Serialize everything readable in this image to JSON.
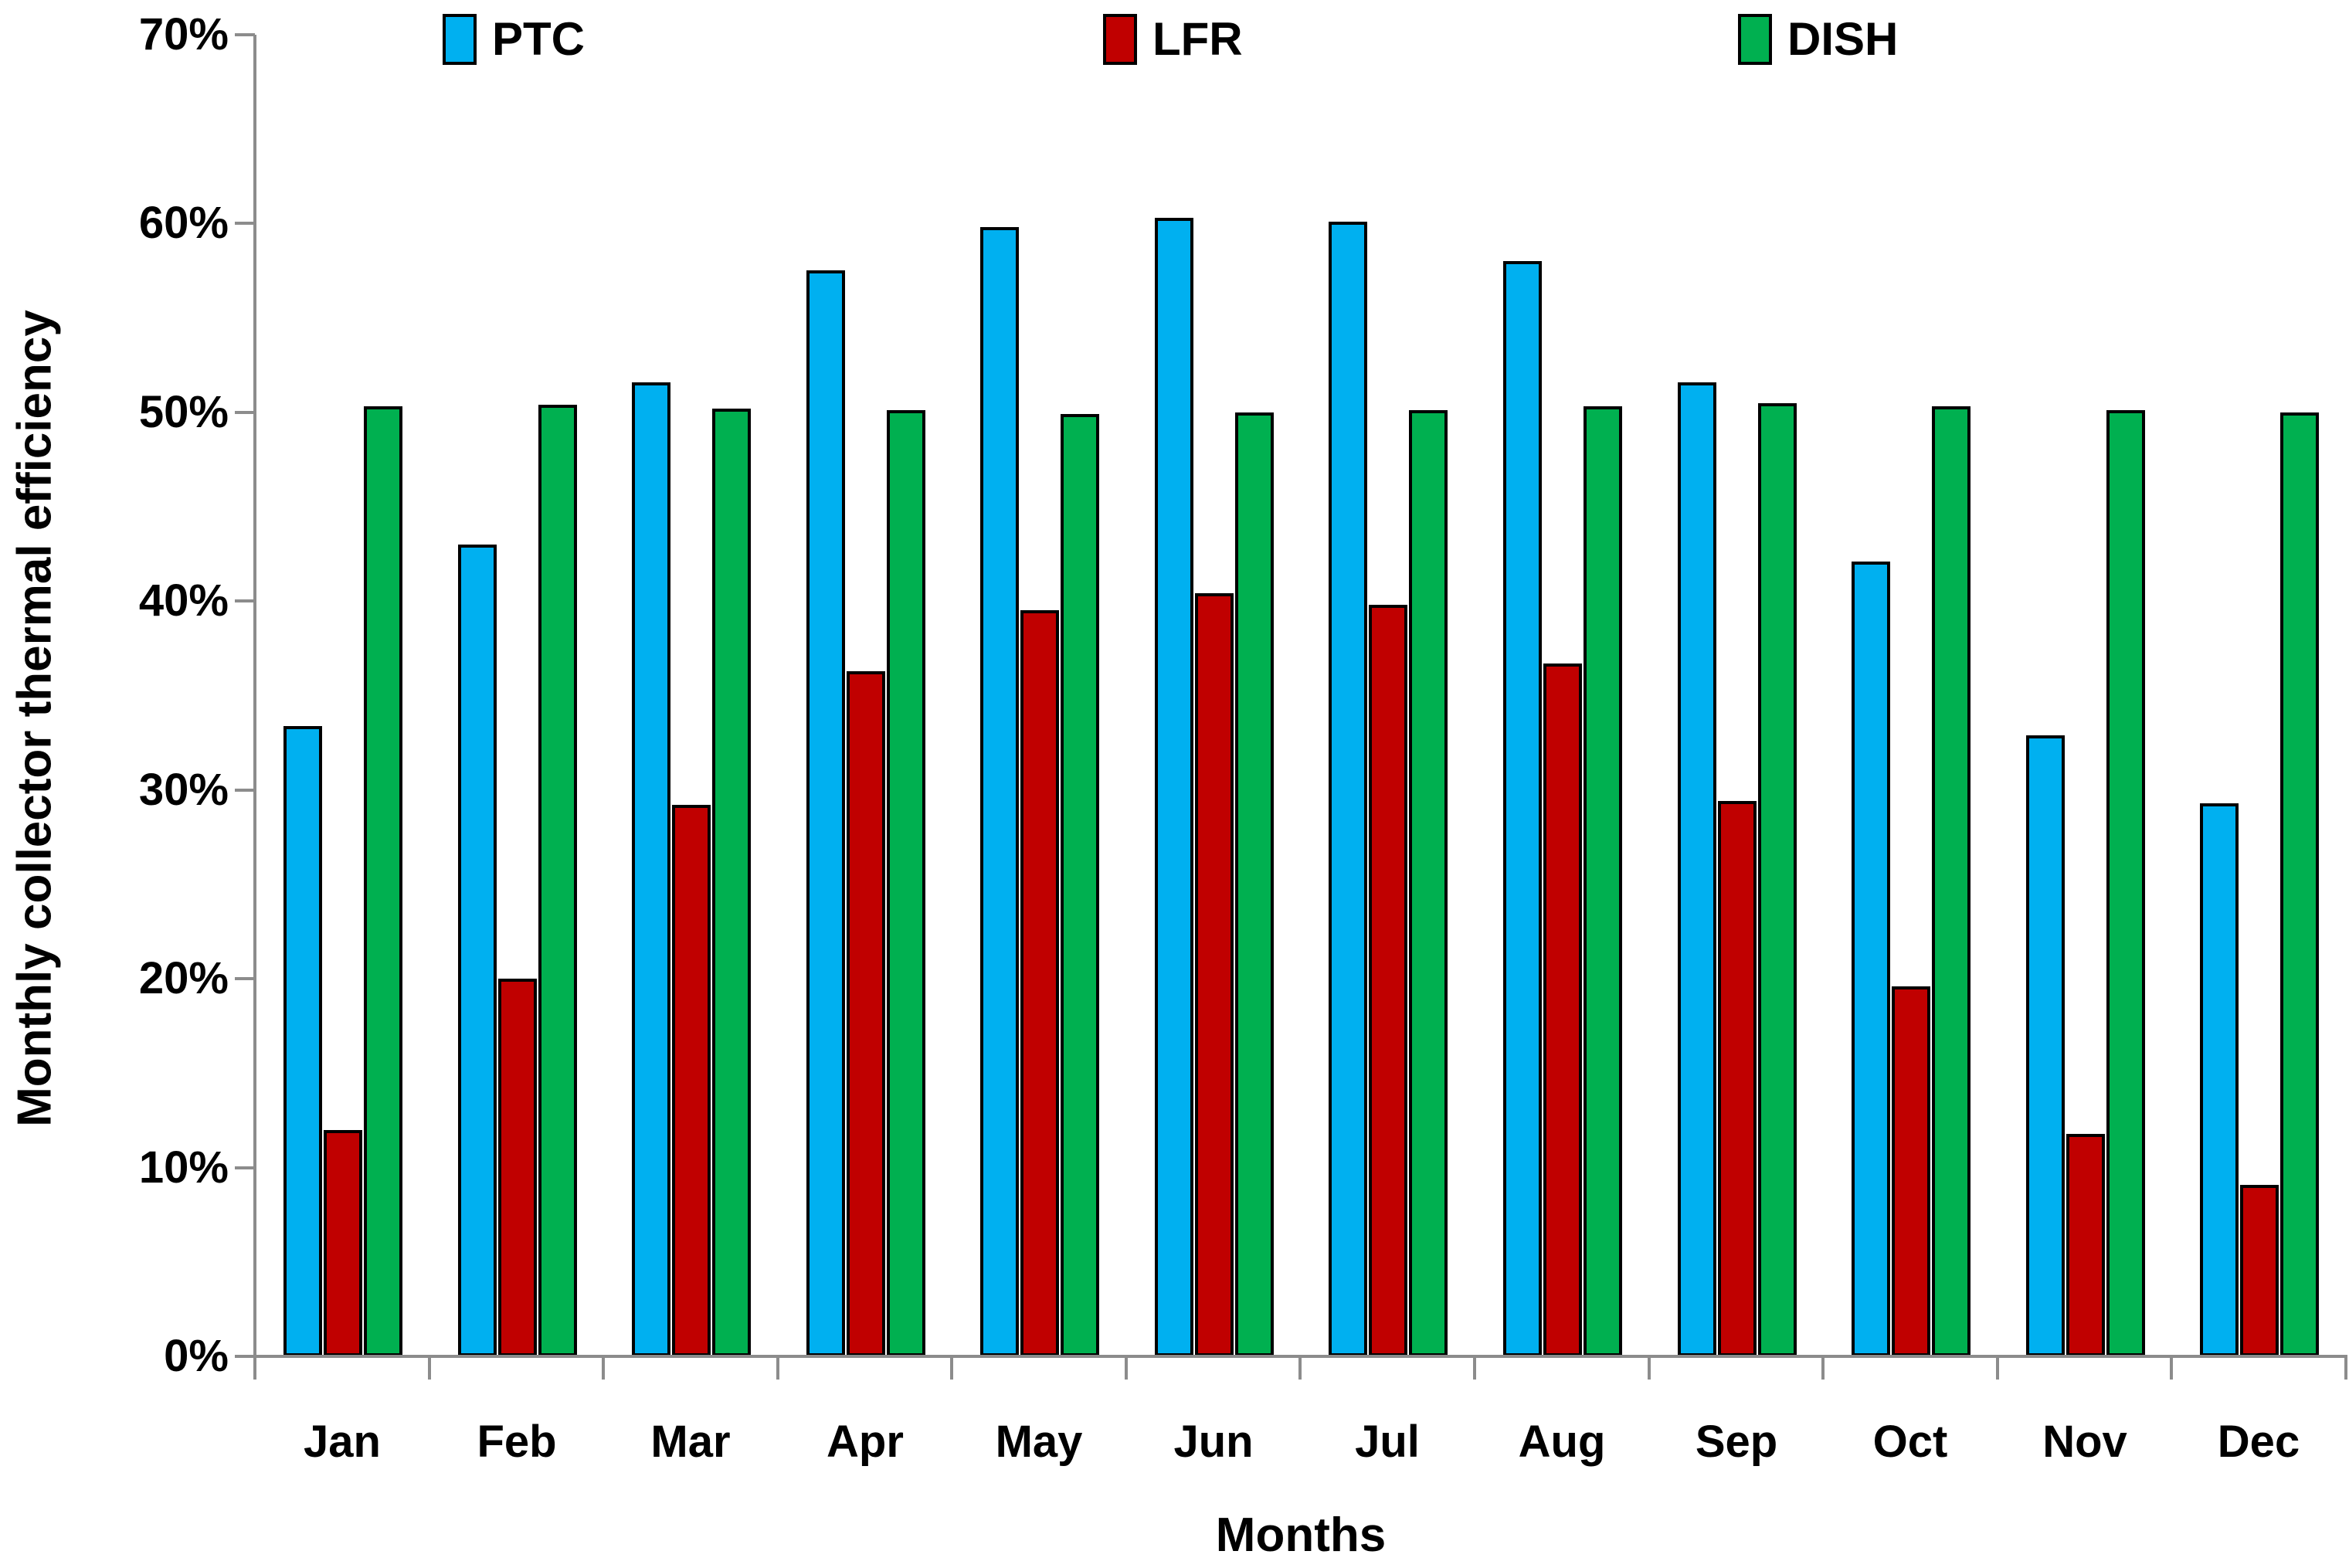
{
  "chart_data": {
    "type": "bar",
    "title": "",
    "ylabel": "Monthly collector thermal efficiency",
    "xlabel": "Months",
    "categories": [
      "Jan",
      "Feb",
      "Mar",
      "Apr",
      "May",
      "Jun",
      "Jul",
      "Aug",
      "Sep",
      "Oct",
      "Nov",
      "Dec"
    ],
    "series": [
      {
        "name": "PTC",
        "color": "#00B0F0",
        "values": [
          33.4,
          43.0,
          51.6,
          57.5,
          59.8,
          60.3,
          60.1,
          58.0,
          51.6,
          42.1,
          32.9,
          29.3
        ]
      },
      {
        "name": "LFR",
        "color": "#C00000",
        "values": [
          12.0,
          20.0,
          29.2,
          36.3,
          39.5,
          40.4,
          39.8,
          36.7,
          29.4,
          19.6,
          11.8,
          9.1
        ]
      },
      {
        "name": "DISH",
        "color": "#00B050",
        "values": [
          50.3,
          50.4,
          50.2,
          50.1,
          49.9,
          50.0,
          50.1,
          50.3,
          50.5,
          50.3,
          50.1,
          50.0
        ]
      }
    ],
    "ylim": [
      0,
      70
    ],
    "ytick_step": 10,
    "ytick_labels": [
      "0%",
      "10%",
      "20%",
      "30%",
      "40%",
      "50%",
      "60%",
      "70%"
    ],
    "grid": false,
    "legend_position": "top",
    "axis_color": "#8c8c8c",
    "bar_border_color": "#000000"
  }
}
